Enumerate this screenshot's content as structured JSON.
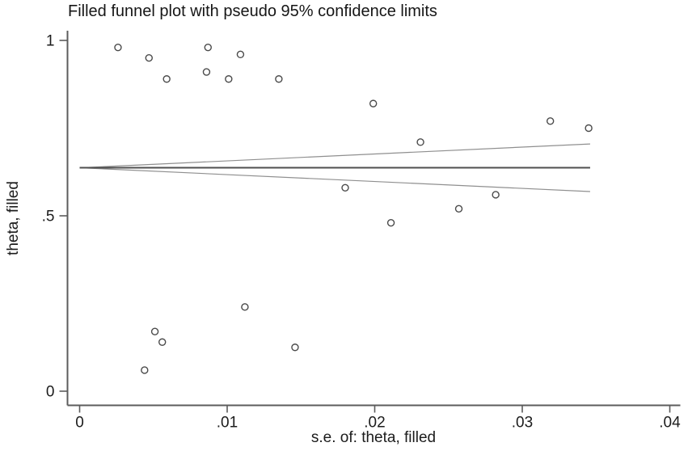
{
  "chart_data": {
    "type": "scatter",
    "title": "Filled funnel plot with pseudo 95% confidence limits",
    "xlabel": "s.e. of: theta, filled",
    "ylabel": "theta, filled",
    "xlim": [
      0,
      0.04
    ],
    "ylim": [
      0,
      1
    ],
    "grid": false,
    "legend_position": "none",
    "x_ticks": {
      "values": [
        0,
        0.01,
        0.02,
        0.03,
        0.04
      ],
      "labels": [
        "0",
        ".01",
        ".02",
        ".03",
        ".04"
      ]
    },
    "y_ticks": {
      "values": [
        0,
        0.5,
        1
      ],
      "labels": [
        "0",
        ".5",
        "1"
      ]
    },
    "points": [
      {
        "se": 0.0026,
        "theta": 0.98
      },
      {
        "se": 0.0047,
        "theta": 0.95
      },
      {
        "se": 0.0059,
        "theta": 0.89
      },
      {
        "se": 0.0086,
        "theta": 0.91
      },
      {
        "se": 0.0087,
        "theta": 0.98
      },
      {
        "se": 0.0101,
        "theta": 0.89
      },
      {
        "se": 0.0109,
        "theta": 0.96
      },
      {
        "se": 0.0135,
        "theta": 0.89
      },
      {
        "se": 0.0199,
        "theta": 0.82
      },
      {
        "se": 0.0231,
        "theta": 0.71
      },
      {
        "se": 0.0319,
        "theta": 0.77
      },
      {
        "se": 0.0345,
        "theta": 0.75
      },
      {
        "se": 0.018,
        "theta": 0.58
      },
      {
        "se": 0.0211,
        "theta": 0.48
      },
      {
        "se": 0.0257,
        "theta": 0.52
      },
      {
        "se": 0.0282,
        "theta": 0.56
      },
      {
        "se": 0.0044,
        "theta": 0.06
      },
      {
        "se": 0.0051,
        "theta": 0.17
      },
      {
        "se": 0.0056,
        "theta": 0.14
      },
      {
        "se": 0.0112,
        "theta": 0.24
      },
      {
        "se": 0.0146,
        "theta": 0.125
      }
    ],
    "funnel": {
      "pooled_theta": 0.637,
      "z": 1.96,
      "se_start": 0,
      "se_end": 0.0346,
      "upper_at_end": 0.705,
      "lower_at_end": 0.569
    },
    "style": {
      "background": "#ffffff",
      "axis_color": "#5c5c5c",
      "tick_text_color": "#1c1c1c",
      "marker_stroke": "#4a4a4a",
      "center_line_color": "#4f4f4f",
      "ci_line_color": "#8f8f8f"
    }
  }
}
